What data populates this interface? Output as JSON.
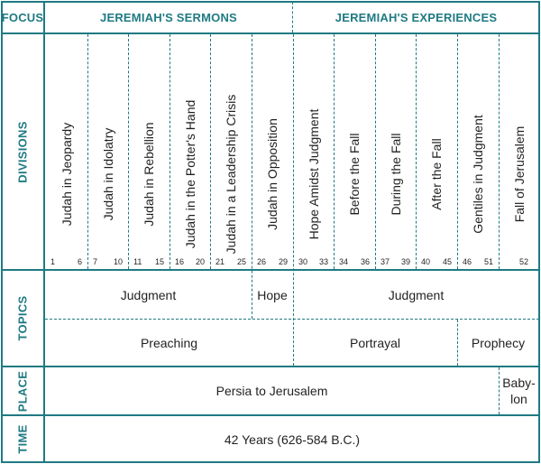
{
  "focus": {
    "label": "FOCUS",
    "sermons": "JEREMIAH'S SERMONS",
    "experiences": "JEREMIAH'S EXPERIENCES"
  },
  "divisions": {
    "label": "DIVISIONS",
    "items": [
      {
        "title": "Judah in Jeopardy",
        "start": "1",
        "end": "6"
      },
      {
        "title": "Judah in Idolatry",
        "start": "7",
        "end": "10"
      },
      {
        "title": "Judah in Rebellion",
        "start": "11",
        "end": "15"
      },
      {
        "title": "Judah in the Potter's Hand",
        "start": "16",
        "end": "20"
      },
      {
        "title": "Judah in a Leadership Crisis",
        "start": "21",
        "end": "25"
      },
      {
        "title": "Judah in Opposition",
        "start": "26",
        "end": "29"
      },
      {
        "title": "Hope Amidst Judgment",
        "start": "30",
        "end": "33"
      },
      {
        "title": "Before the Fall",
        "start": "34",
        "end": "36"
      },
      {
        "title": "During the Fall",
        "start": "37",
        "end": "39"
      },
      {
        "title": "After the Fall",
        "start": "40",
        "end": "45"
      },
      {
        "title": "Gentiles in Judgment",
        "start": "46",
        "end": "51"
      },
      {
        "title": "Fall of Jerusalem",
        "start": "",
        "end": "52"
      }
    ]
  },
  "topics": {
    "label": "TOPICS",
    "row1": {
      "judgment_a": "Judgment",
      "hope": "Hope",
      "judgment_b": "Judgment"
    },
    "row2": {
      "preaching": "Preaching",
      "portrayal": "Portrayal",
      "prophecy": "Prophecy"
    }
  },
  "place": {
    "label": "PLACE",
    "main": "Persia to Jerusalem",
    "babylon_1": "Baby-",
    "babylon_2": "lon"
  },
  "time": {
    "label": "TIME",
    "value": "42 Years (626-584 B.C.)"
  },
  "colors": {
    "accent": "#1f7a83",
    "text": "#231f20"
  }
}
